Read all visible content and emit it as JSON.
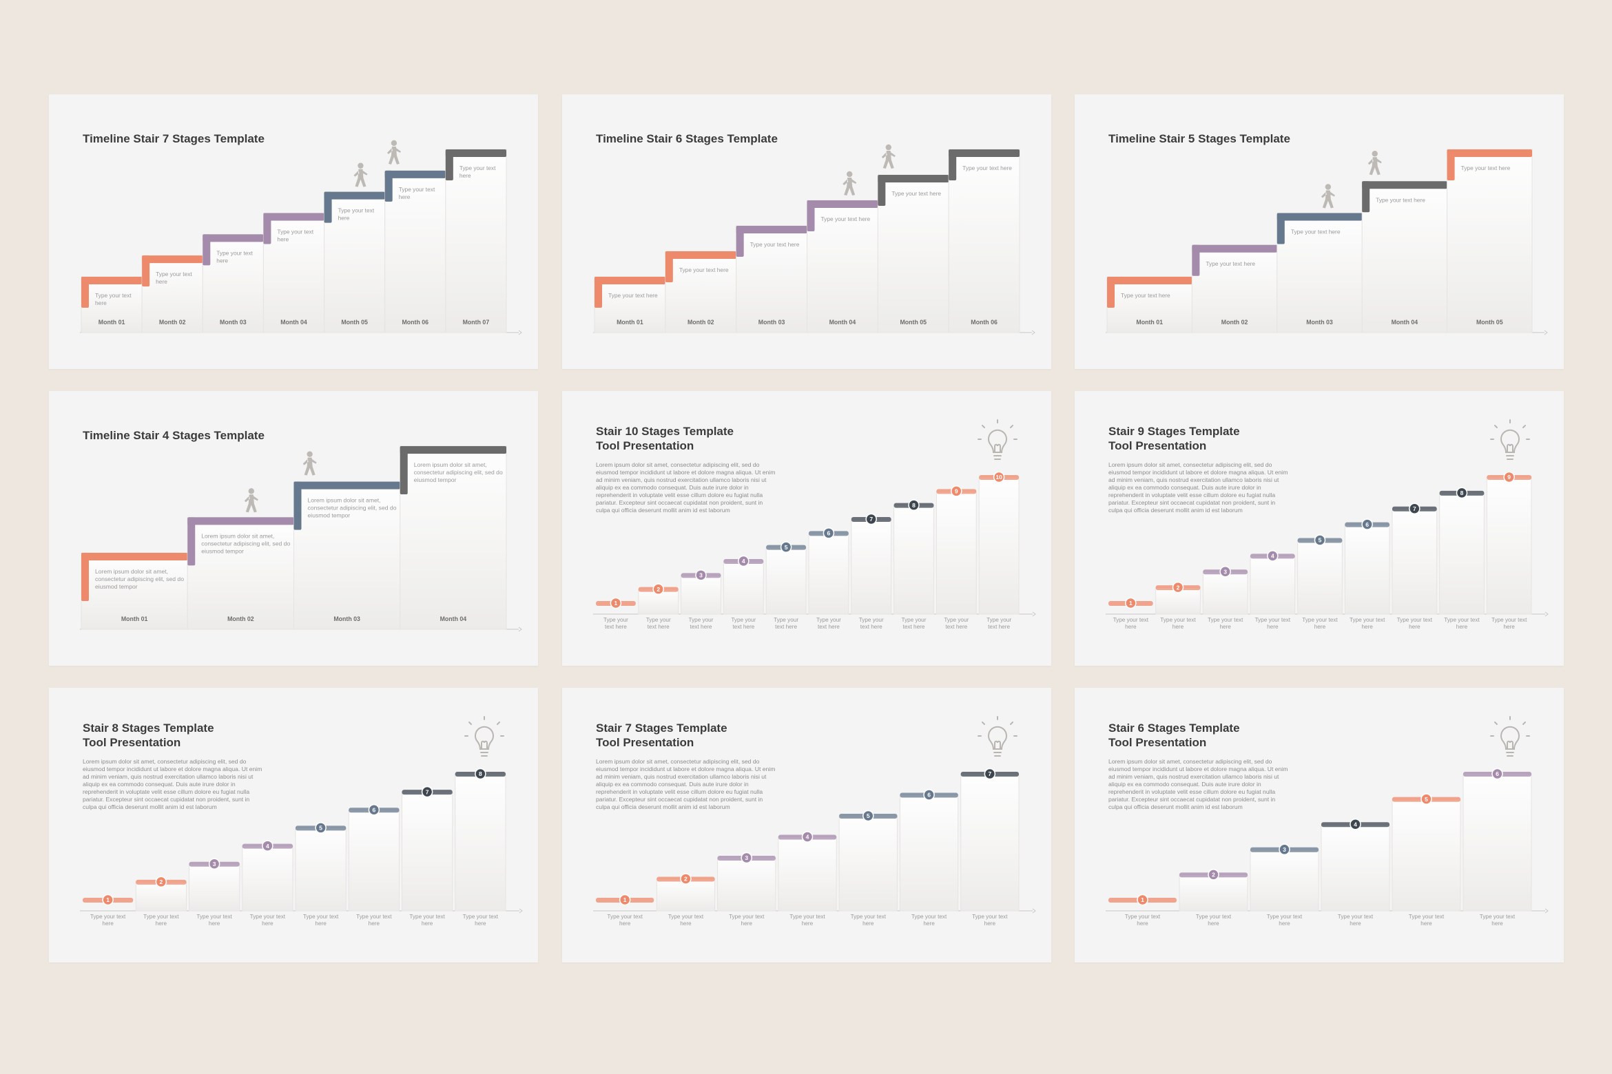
{
  "colors": {
    "orange": "#ee8a6c",
    "purple": "#a48aab",
    "slate": "#66788d",
    "gray": "#6b6b6b",
    "dark": "#3e4650",
    "axis": "#c8c6c4",
    "label": "#6d6d6d",
    "placeholder": "#9a9a9a"
  },
  "slides": [
    {
      "kind": "timeline",
      "title": "Timeline Stair 7 Stages Template",
      "stage_text": "Type your text here",
      "months": [
        "Month 01",
        "Month 02",
        "Month 03",
        "Month 04",
        "Month 05",
        "Month 06",
        "Month 07"
      ],
      "stage_colors": [
        "orange",
        "orange",
        "purple",
        "purple",
        "slate",
        "slate",
        "gray"
      ],
      "person_icons": [
        "walking-person-icon",
        "climbing-person-icon"
      ]
    },
    {
      "kind": "timeline",
      "title": "Timeline Stair 6 Stages Template",
      "stage_text": "Type your text here",
      "months": [
        "Month 01",
        "Month 02",
        "Month 03",
        "Month 04",
        "Month 05",
        "Month 06"
      ],
      "stage_colors": [
        "orange",
        "orange",
        "purple",
        "purple",
        "gray",
        "gray"
      ],
      "person_icons": [
        "walking-person-icon",
        "climbing-person-icon"
      ]
    },
    {
      "kind": "timeline",
      "title": "Timeline Stair 5 Stages Template",
      "stage_text": "Type your text here",
      "months": [
        "Month 01",
        "Month 02",
        "Month 03",
        "Month 04",
        "Month 05"
      ],
      "stage_colors": [
        "orange",
        "purple",
        "slate",
        "gray",
        "orange"
      ],
      "person_icons": [
        "walking-person-icon",
        "climbing-person-icon"
      ]
    },
    {
      "kind": "timeline",
      "title": "Timeline Stair 4 Stages Template",
      "stage_text": "Lorem ipsum dolor sit amet, consectetur adipiscing elit, sed do eiusmod tempor",
      "months": [
        "Month 01",
        "Month 02",
        "Month 03",
        "Month 04"
      ],
      "stage_colors": [
        "orange",
        "purple",
        "slate",
        "gray"
      ],
      "person_icons": [
        "walking-person-icon",
        "climbing-person-icon"
      ]
    },
    {
      "kind": "stairs",
      "title_line1": "Stair 10 Stages Template",
      "title_line2": "Tool Presentation",
      "body": "Lorem ipsum dolor sit amet, consectetur adipiscing elit, sed do eiusmod tempor incididunt ut labore et dolore magna aliqua. Ut enim ad minim veniam, quis nostrud exercitation ullamco laboris nisi ut aliquip ex ea commodo consequat. Duis aute irure dolor in reprehenderit in voluptate velit esse cillum dolore eu fugiat nulla pariatur. Excepteur sint occaecat cupidatat non proident, sunt in culpa qui officia deserunt mollit anim id est laborum",
      "step_label": "Type your text here",
      "numbers": [
        "1",
        "2",
        "3",
        "4",
        "5",
        "6",
        "7",
        "8",
        "9",
        "10"
      ],
      "stage_colors": [
        "orange",
        "orange",
        "purple",
        "purple",
        "slate",
        "slate",
        "dark",
        "dark",
        "orange",
        "orange"
      ]
    },
    {
      "kind": "stairs",
      "title_line1": "Stair 9 Stages Template",
      "title_line2": "Tool Presentation",
      "body": "Lorem ipsum dolor sit amet, consectetur adipiscing elit, sed do eiusmod tempor incididunt ut labore et dolore magna aliqua. Ut enim ad minim veniam, quis nostrud exercitation ullamco laboris nisi ut aliquip ex ea commodo consequat. Duis aute irure dolor in reprehenderit in voluptate velit esse cillum dolore eu fugiat nulla pariatur. Excepteur sint occaecat cupidatat non proident, sunt in culpa qui officia deserunt mollit anim id est laborum",
      "step_label": "Type your text here",
      "numbers": [
        "1",
        "2",
        "3",
        "4",
        "5",
        "6",
        "7",
        "8",
        "9"
      ],
      "stage_colors": [
        "orange",
        "orange",
        "purple",
        "purple",
        "slate",
        "slate",
        "dark",
        "dark",
        "orange"
      ]
    },
    {
      "kind": "stairs",
      "title_line1": "Stair 8 Stages Template",
      "title_line2": "Tool Presentation",
      "body": "Lorem ipsum dolor sit amet, consectetur adipiscing elit, sed do eiusmod tempor incididunt ut labore et dolore magna aliqua. Ut enim ad minim veniam, quis nostrud exercitation ullamco laboris nisi ut aliquip ex ea commodo consequat. Duis aute irure dolor in reprehenderit in voluptate velit esse cillum dolore eu fugiat nulla pariatur. Excepteur sint occaecat cupidatat non proident, sunt in culpa qui officia deserunt mollit anim id est laborum",
      "step_label": "Type your text here",
      "numbers": [
        "1",
        "2",
        "3",
        "4",
        "5",
        "6",
        "7",
        "8"
      ],
      "stage_colors": [
        "orange",
        "orange",
        "purple",
        "purple",
        "slate",
        "slate",
        "dark",
        "dark"
      ]
    },
    {
      "kind": "stairs",
      "title_line1": "Stair 7 Stages Template",
      "title_line2": "Tool Presentation",
      "body": "Lorem ipsum dolor sit amet, consectetur adipiscing elit, sed do eiusmod tempor incididunt ut labore et dolore magna aliqua. Ut enim ad minim veniam, quis nostrud exercitation ullamco laboris nisi ut aliquip ex ea commodo consequat. Duis aute irure dolor in reprehenderit in voluptate velit esse cillum dolore eu fugiat nulla pariatur. Excepteur sint occaecat cupidatat non proident, sunt in culpa qui officia deserunt mollit anim id est laborum",
      "step_label": "Type your text here",
      "numbers": [
        "1",
        "2",
        "3",
        "4",
        "5",
        "6",
        "7"
      ],
      "stage_colors": [
        "orange",
        "orange",
        "purple",
        "purple",
        "slate",
        "slate",
        "dark"
      ]
    },
    {
      "kind": "stairs",
      "title_line1": "Stair 6 Stages Template",
      "title_line2": "Tool Presentation",
      "body": "Lorem ipsum dolor sit amet, consectetur adipiscing elit, sed do eiusmod tempor incididunt ut labore et dolore magna aliqua. Ut enim ad minim veniam, quis nostrud exercitation ullamco laboris nisi ut aliquip ex ea commodo consequat. Duis aute irure dolor in reprehenderit in voluptate velit esse cillum dolore eu fugiat nulla pariatur. Excepteur sint occaecat cupidatat non proident, sunt in culpa qui officia deserunt mollit anim id est laborum",
      "step_label": "Type your text here",
      "numbers": [
        "1",
        "2",
        "3",
        "4",
        "5",
        "6"
      ],
      "stage_colors": [
        "orange",
        "purple",
        "slate",
        "dark",
        "orange",
        "purple"
      ]
    }
  ]
}
